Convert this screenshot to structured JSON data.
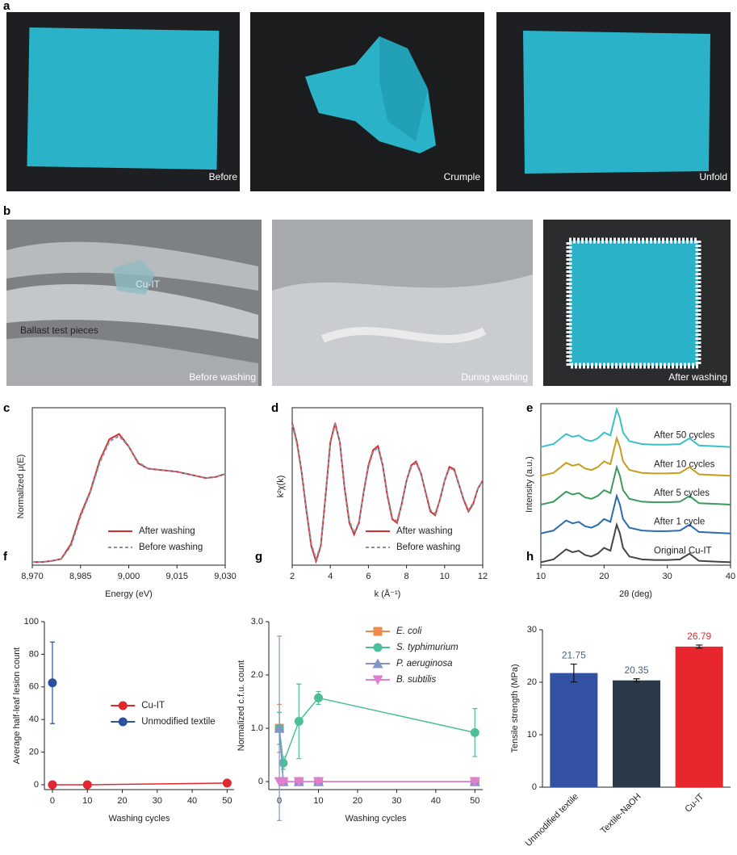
{
  "photos": {
    "a": {
      "label": "a",
      "captions": [
        "Before",
        "Crumple",
        "Unfold"
      ]
    },
    "b": {
      "label": "b",
      "captions": [
        "Before washing",
        "During washing",
        "After washing"
      ],
      "annotations": [
        "Cu-IT",
        "Ballast test pieces"
      ]
    }
  },
  "chart_data": [
    {
      "type": "line",
      "panel": "c",
      "xlabel": "Energy (eV)",
      "ylabel": "Normalized μ(E)",
      "frame": "box",
      "legend": "lower right",
      "x": [
        8970,
        8973,
        8976,
        8979,
        8982,
        8985,
        8988,
        8991,
        8994,
        8997,
        9000,
        9003,
        9006,
        9009,
        9012,
        9015,
        9018,
        9021,
        9024,
        9027,
        9030
      ],
      "xlim": [
        8970,
        9030
      ],
      "ylim": [
        0,
        1.5
      ],
      "xticks": [
        {
          "value": 8970,
          "label": "8,970"
        },
        {
          "value": 8985,
          "label": "8,985"
        },
        {
          "value": 9000,
          "label": "9,000"
        },
        {
          "value": 9015,
          "label": "9,015"
        },
        {
          "value": 9030,
          "label": "9,030"
        }
      ],
      "series": [
        {
          "name": "After washing",
          "color": "#d62f2f",
          "dash": false,
          "values": [
            0.03,
            0.03,
            0.04,
            0.06,
            0.2,
            0.48,
            0.7,
            1.0,
            1.2,
            1.25,
            1.13,
            0.97,
            0.92,
            0.91,
            0.9,
            0.89,
            0.87,
            0.85,
            0.83,
            0.84,
            0.87
          ]
        },
        {
          "name": "Before washing",
          "color": "#8a8f99",
          "dash": true,
          "values": [
            0.03,
            0.03,
            0.04,
            0.06,
            0.18,
            0.46,
            0.69,
            0.98,
            1.18,
            1.23,
            1.13,
            0.98,
            0.92,
            0.91,
            0.9,
            0.89,
            0.87,
            0.85,
            0.83,
            0.84,
            0.87
          ]
        }
      ]
    },
    {
      "type": "line",
      "panel": "d",
      "xlabel": "k (Å⁻¹)",
      "ylabel": "k²χ(k)",
      "frame": "box",
      "legend": "lower right",
      "x": [
        2,
        2.25,
        2.5,
        2.75,
        3,
        3.25,
        3.5,
        3.75,
        4,
        4.25,
        4.5,
        4.75,
        5,
        5.25,
        5.5,
        5.75,
        6,
        6.25,
        6.5,
        6.75,
        7,
        7.25,
        7.5,
        7.75,
        8,
        8.25,
        8.5,
        8.75,
        9,
        9.25,
        9.5,
        9.75,
        10,
        10.25,
        10.5,
        10.75,
        11,
        11.25,
        11.5,
        11.75,
        12
      ],
      "xlim": [
        2,
        12
      ],
      "ylim": [
        -1,
        1.05
      ],
      "xticks": [
        2,
        4,
        6,
        8,
        10,
        12
      ],
      "series": [
        {
          "name": "After washing",
          "color": "#d62f2f",
          "dash": false,
          "values": [
            0.85,
            0.6,
            0.2,
            -0.3,
            -0.75,
            -0.95,
            -0.75,
            -0.1,
            0.6,
            0.85,
            0.6,
            0,
            -0.45,
            -0.6,
            -0.45,
            -0.05,
            0.3,
            0.5,
            0.55,
            0.3,
            -0.1,
            -0.4,
            -0.45,
            -0.2,
            0.1,
            0.3,
            0.35,
            0.2,
            -0.05,
            -0.3,
            -0.35,
            -0.15,
            0.1,
            0.28,
            0.25,
            0.05,
            -0.15,
            -0.3,
            -0.2,
            0,
            0.1
          ]
        },
        {
          "name": "Before washing",
          "color": "#8a8f99",
          "dash": true,
          "values": [
            0.83,
            0.58,
            0.2,
            -0.28,
            -0.72,
            -0.92,
            -0.74,
            -0.1,
            0.58,
            0.83,
            0.6,
            0.02,
            -0.42,
            -0.58,
            -0.44,
            -0.05,
            0.28,
            0.48,
            0.53,
            0.3,
            -0.08,
            -0.38,
            -0.43,
            -0.2,
            0.1,
            0.28,
            0.33,
            0.2,
            -0.04,
            -0.28,
            -0.33,
            -0.15,
            0.1,
            0.26,
            0.24,
            0.05,
            -0.14,
            -0.28,
            -0.19,
            0,
            0.1
          ]
        }
      ]
    },
    {
      "type": "line",
      "panel": "e",
      "xlabel": "2θ (deg)",
      "ylabel": "Intensity (a.u.)",
      "frame": "box",
      "legend": "inline",
      "x": [
        10,
        12,
        14,
        15,
        16,
        17,
        18,
        19,
        20,
        21,
        22,
        22.5,
        23,
        24,
        26,
        28,
        30,
        32,
        33.5,
        35,
        38,
        40
      ],
      "xlim": [
        10,
        40
      ],
      "ylim": [
        -0.1,
        5.5
      ],
      "xticks": [
        10,
        20,
        30,
        40
      ],
      "series": [
        {
          "name": "Original Cu-IT",
          "color": "#444444",
          "dash": false,
          "values": [
            0,
            0.1,
            0.45,
            0.35,
            0.4,
            0.25,
            0.2,
            0.3,
            0.5,
            0.4,
            1.3,
            1,
            0.5,
            0.2,
            0.1,
            0.08,
            0.08,
            0.1,
            0.3,
            0.05,
            0.02,
            0
          ]
        },
        {
          "name": "After 1 cycle",
          "color": "#2b6cb0",
          "dash": false,
          "values": [
            1,
            1.1,
            1.45,
            1.35,
            1.4,
            1.25,
            1.2,
            1.3,
            1.5,
            1.4,
            2.3,
            2,
            1.5,
            1.2,
            1.1,
            1.08,
            1.08,
            1.1,
            1.3,
            1.05,
            1.02,
            1
          ]
        },
        {
          "name": "After 5 cycles",
          "color": "#3a9b5c",
          "dash": false,
          "values": [
            2,
            2.1,
            2.45,
            2.35,
            2.4,
            2.25,
            2.2,
            2.3,
            2.5,
            2.4,
            3.3,
            3,
            2.5,
            2.2,
            2.1,
            2.08,
            2.08,
            2.1,
            2.3,
            2.05,
            2.02,
            2
          ]
        },
        {
          "name": "After 10 cycles",
          "color": "#c79d1e",
          "dash": false,
          "values": [
            3,
            3.1,
            3.45,
            3.35,
            3.4,
            3.25,
            3.2,
            3.3,
            3.5,
            3.4,
            4.3,
            4,
            3.5,
            3.2,
            3.1,
            3.08,
            3.08,
            3.1,
            3.3,
            3.05,
            3.02,
            3
          ]
        },
        {
          "name": "After 50 cycles",
          "color": "#3cc0c8",
          "dash": false,
          "values": [
            4,
            4.1,
            4.45,
            4.35,
            4.4,
            4.25,
            4.2,
            4.3,
            4.5,
            4.4,
            5.3,
            5,
            4.5,
            4.2,
            4.1,
            4.08,
            4.08,
            4.1,
            4.3,
            4.05,
            4.02,
            4
          ]
        }
      ]
    },
    {
      "type": "line",
      "panel": "f",
      "xlabel": "Washing cycles",
      "ylabel": "Average half-leaf lesion count",
      "frame": "open",
      "legend": "center right",
      "xlim": [
        -2.3,
        52
      ],
      "ylim": [
        -3,
        100
      ],
      "xticks": [
        0,
        10,
        20,
        30,
        40,
        50
      ],
      "yticks": [
        0,
        20,
        40,
        60,
        80,
        100
      ],
      "series": [
        {
          "name": "Cu-IT",
          "color": "#e0282e",
          "marker": "circle",
          "x": [
            0,
            10,
            50
          ],
          "values": [
            0,
            0,
            1
          ]
        },
        {
          "name": "Unmodified textile",
          "color": "#2c4f9e",
          "marker": "circle",
          "x": [
            0
          ],
          "values": [
            62.5
          ],
          "error": [
            25
          ]
        }
      ]
    },
    {
      "type": "line",
      "panel": "g",
      "xlabel": "Washing cycles",
      "ylabel": "Normalized c.f.u. count",
      "frame": "open",
      "legend": "upper right",
      "legend_italic": true,
      "xlim": [
        -2.7,
        52
      ],
      "ylim": [
        -0.15,
        3
      ],
      "xticks": [
        0,
        10,
        20,
        30,
        40,
        50
      ],
      "yticks": [
        0,
        {
          "value": 1,
          "label": "1.0"
        },
        {
          "value": 2,
          "label": "2.0"
        },
        {
          "value": 3,
          "label": "3.0"
        }
      ],
      "series": [
        {
          "name": "E. coli",
          "color": "#f08a4b",
          "marker": "square",
          "x": [
            0,
            1,
            5,
            10,
            50
          ],
          "values": [
            1,
            0,
            0,
            0,
            0
          ],
          "error": [
            0.45,
            null,
            null,
            null,
            null
          ]
        },
        {
          "name": "S. typhimurium",
          "color": "#4cbf96",
          "marker": "circle",
          "x": [
            0,
            1,
            5,
            10,
            50
          ],
          "values": [
            1,
            0.35,
            1.13,
            1.57,
            0.92
          ],
          "error": [
            0.3,
            0.12,
            0.7,
            0.12,
            0.45
          ]
        },
        {
          "name": "P. aeruginosa",
          "color": "#8195c9",
          "marker": "triangle-up",
          "x": [
            0,
            1,
            5,
            10,
            50
          ],
          "values": [
            1,
            0,
            0,
            0,
            0
          ],
          "error": [
            1.73,
            null,
            null,
            null,
            null
          ]
        },
        {
          "name": "B. subtilis",
          "color": "#e07fd0",
          "marker": "triangle-down",
          "x": [
            0,
            1,
            5,
            10,
            50
          ],
          "values": [
            0,
            0,
            0,
            0,
            0
          ]
        }
      ]
    },
    {
      "type": "bar",
      "panel": "h",
      "ylabel": "Tensile strength (MPa)",
      "frame": "open",
      "categories": [
        "Unmodified textile",
        "Textile-NaOH",
        "Cu-IT"
      ],
      "values": [
        21.75,
        20.35,
        26.79
      ],
      "error": [
        1.7,
        0.3,
        0.3
      ],
      "colors": [
        "#3452a4",
        "#2b3a4a",
        "#e8262e"
      ],
      "value_label_colors": [
        "#4a6080",
        "#4a6080",
        "#e8262e"
      ],
      "ylim": [
        0,
        30
      ],
      "yticks": [
        0,
        10,
        20,
        30
      ]
    }
  ]
}
